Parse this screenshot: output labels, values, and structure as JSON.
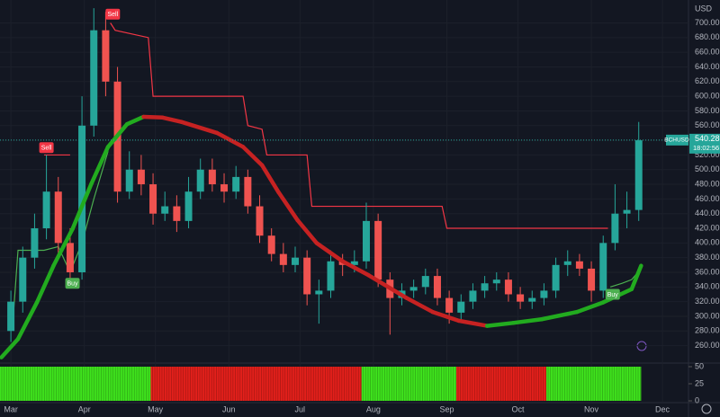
{
  "chart_data": {
    "type": "candlestick",
    "currency": "USD",
    "x": [
      0,
      5,
      10,
      15,
      20,
      25,
      30,
      35,
      40,
      45,
      50,
      55,
      60,
      65,
      70,
      75,
      80,
      85,
      90,
      95,
      100,
      105,
      110,
      115,
      120,
      125,
      130,
      135,
      140,
      145,
      150,
      155,
      160,
      165,
      170,
      175,
      180,
      185,
      190,
      195,
      200,
      205,
      210,
      215,
      220,
      225,
      230,
      235,
      240,
      245,
      250,
      255,
      260,
      265
    ],
    "open": [
      280,
      320,
      380,
      420,
      470,
      400,
      360,
      560,
      690,
      620,
      470,
      500,
      480,
      440,
      450,
      430,
      470,
      500,
      480,
      470,
      490,
      450,
      410,
      385,
      370,
      380,
      330,
      335,
      375,
      370,
      375,
      430,
      350,
      325,
      335,
      340,
      355,
      325,
      305,
      320,
      335,
      345,
      350,
      330,
      320,
      325,
      335,
      370,
      375,
      365,
      335,
      400,
      440,
      445
    ],
    "high": [
      335,
      395,
      440,
      520,
      490,
      420,
      600,
      720,
      715,
      640,
      525,
      520,
      495,
      470,
      465,
      490,
      515,
      515,
      495,
      505,
      500,
      465,
      420,
      400,
      395,
      390,
      350,
      390,
      385,
      390,
      455,
      440,
      360,
      345,
      350,
      365,
      365,
      335,
      330,
      345,
      355,
      360,
      360,
      340,
      335,
      345,
      380,
      390,
      385,
      375,
      410,
      480,
      470,
      565
    ],
    "low": [
      265,
      305,
      365,
      405,
      385,
      345,
      350,
      545,
      600,
      455,
      460,
      465,
      425,
      430,
      415,
      420,
      460,
      470,
      455,
      460,
      440,
      400,
      375,
      360,
      360,
      315,
      290,
      325,
      355,
      360,
      365,
      340,
      275,
      315,
      325,
      330,
      315,
      290,
      295,
      310,
      325,
      335,
      320,
      310,
      310,
      315,
      325,
      355,
      355,
      320,
      325,
      390,
      420,
      430
    ],
    "close": [
      320,
      380,
      420,
      470,
      400,
      360,
      560,
      690,
      620,
      470,
      500,
      480,
      440,
      450,
      430,
      470,
      500,
      480,
      470,
      490,
      450,
      410,
      385,
      370,
      380,
      330,
      335,
      375,
      370,
      375,
      430,
      350,
      325,
      335,
      340,
      355,
      325,
      305,
      320,
      335,
      345,
      350,
      330,
      320,
      325,
      335,
      370,
      375,
      365,
      335,
      400,
      440,
      445,
      540
    ],
    "up_color": "#26a69a",
    "down_color": "#ef5350",
    "moving_average": {
      "x": [
        -4,
        3,
        11,
        18,
        26,
        34,
        41,
        49,
        56,
        64,
        72,
        87,
        98,
        106,
        113,
        121,
        129,
        140,
        151,
        167,
        178,
        189,
        201,
        212,
        224,
        239,
        250,
        262,
        266
      ],
      "values": [
        244,
        269,
        319,
        369,
        419,
        481,
        531,
        562,
        572,
        571,
        565,
        550,
        531,
        506,
        469,
        431,
        400,
        375,
        356,
        325,
        306,
        294,
        287,
        291,
        296,
        306,
        319,
        337,
        369
      ],
      "rising_color": "#22ab1f",
      "falling_color": "#c62222"
    },
    "trailing_stop": [
      {
        "color": "#f23645",
        "x": [
          14,
          25,
          30,
          42,
          44,
          58,
          60,
          98,
          100,
          106,
          108,
          125,
          127,
          182,
          184,
          252
        ],
        "values": [
          520,
          520,
          null,
          700,
          690,
          680,
          600,
          600,
          560,
          555,
          520,
          520,
          450,
          450,
          420,
          420
        ]
      },
      {
        "color": "#4caf50",
        "x": [
          1,
          3,
          14,
          20,
          25,
          30,
          35,
          41,
          46,
          253,
          258,
          262,
          266
        ],
        "values": [
          300,
          390,
          390,
          395,
          360,
          400,
          460,
          525,
          null,
          340,
          345,
          350,
          365
        ]
      }
    ],
    "annotations": [
      {
        "text": "Sell",
        "x": 15,
        "y": 530,
        "color": "#f23645"
      },
      {
        "text": "Sell",
        "x": 43,
        "y": 712,
        "color": "#f23645"
      },
      {
        "text": "Buy",
        "x": 26,
        "y": 345,
        "color": "#4caf50"
      },
      {
        "text": "Buy",
        "x": 254,
        "y": 330,
        "color": "#4caf50"
      }
    ],
    "last_price": {
      "symbol": "BCHUSD",
      "value": 540.28,
      "countdown": "18:02:56"
    },
    "xlim": [
      -4.6,
      286
    ],
    "xticks": [
      {
        "value": 0,
        "label": "Mar"
      },
      {
        "value": 31,
        "label": "Apr"
      },
      {
        "value": 61,
        "label": "May"
      },
      {
        "value": 92,
        "label": "Jun"
      },
      {
        "value": 122,
        "label": "Jul"
      },
      {
        "value": 153,
        "label": "Aug"
      },
      {
        "value": 184,
        "label": "Sep"
      },
      {
        "value": 214,
        "label": "Oct"
      },
      {
        "value": 245,
        "label": "Nov"
      },
      {
        "value": 275,
        "label": "Dec"
      }
    ],
    "ylim": [
      731.25,
      236.25
    ],
    "yticks": [
      {
        "value": 260,
        "label": "260.00"
      },
      {
        "value": 280,
        "label": "280.00"
      },
      {
        "value": 300,
        "label": "300.00"
      },
      {
        "value": 320,
        "label": "320.00"
      },
      {
        "value": 340,
        "label": "340.00"
      },
      {
        "value": 360,
        "label": "360.00"
      },
      {
        "value": 380,
        "label": "380.00"
      },
      {
        "value": 400,
        "label": "400.00"
      },
      {
        "value": 420,
        "label": "420.00"
      },
      {
        "value": 440,
        "label": "440.00"
      },
      {
        "value": 460,
        "label": "460.00"
      },
      {
        "value": 480,
        "label": "480.00"
      },
      {
        "value": 500,
        "label": "500.00"
      },
      {
        "value": 520,
        "label": "520.00"
      },
      {
        "value": 540,
        "label": "540.00"
      },
      {
        "value": 560,
        "label": "560.00"
      },
      {
        "value": 580,
        "label": "580.00"
      },
      {
        "value": 600,
        "label": "600.00"
      },
      {
        "value": 620,
        "label": "620.00"
      },
      {
        "value": 640,
        "label": "640.00"
      },
      {
        "value": 660,
        "label": "660.00"
      },
      {
        "value": 680,
        "label": "680.00"
      },
      {
        "value": 700,
        "label": "700.00"
      }
    ],
    "indicator": {
      "ylim": [
        0,
        50
      ],
      "yticks": [
        50,
        25,
        0
      ],
      "segments": [
        {
          "from": -4.6,
          "to": 59,
          "color": "#3fe31d"
        },
        {
          "from": 59,
          "to": 148,
          "color": "#e3201b"
        },
        {
          "from": 148,
          "to": 188,
          "color": "#3fe31d"
        },
        {
          "from": 188,
          "to": 226,
          "color": "#e3201b"
        },
        {
          "from": 226,
          "to": 266,
          "color": "#3fe31d"
        }
      ]
    }
  }
}
